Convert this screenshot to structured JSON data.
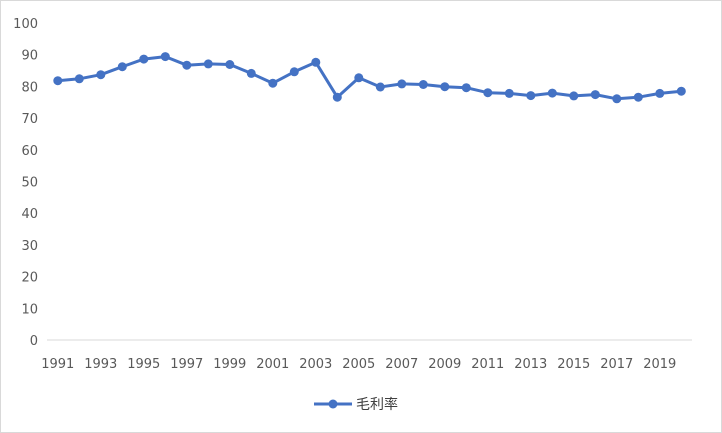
{
  "chart_data": {
    "type": "line",
    "x": [
      1991,
      1992,
      1993,
      1994,
      1995,
      1996,
      1997,
      1998,
      1999,
      2000,
      2001,
      2002,
      2003,
      2004,
      2005,
      2006,
      2007,
      2008,
      2009,
      2010,
      2011,
      2012,
      2013,
      2014,
      2015,
      2016,
      2017,
      2018,
      2019,
      2020
    ],
    "x_tick_labels": [
      "1991",
      "1993",
      "1995",
      "1997",
      "1999",
      "2001",
      "2003",
      "2005",
      "2007",
      "2009",
      "2011",
      "2013",
      "2015",
      "2017",
      "2019"
    ],
    "y_tick_labels": [
      "0",
      "10",
      "20",
      "30",
      "40",
      "50",
      "60",
      "70",
      "80",
      "90",
      "100"
    ],
    "ylim": [
      0,
      100
    ],
    "series": [
      {
        "name": "毛利率",
        "color": "#4472c4",
        "values": [
          81.8,
          82.4,
          83.7,
          86.2,
          88.6,
          89.4,
          86.7,
          87.1,
          86.9,
          84.1,
          81.0,
          84.6,
          87.6,
          76.6,
          82.7,
          79.8,
          80.8,
          80.6,
          79.9,
          79.6,
          78.0,
          77.8,
          77.1,
          77.9,
          77.0,
          77.4,
          76.1,
          76.6,
          77.8,
          78.5
        ]
      }
    ],
    "grid": false,
    "legend_position": "bottom"
  }
}
